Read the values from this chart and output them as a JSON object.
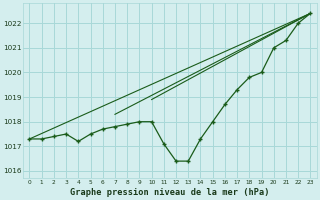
{
  "xlabel": "Graphe pression niveau de la mer (hPa)",
  "background_color": "#d4eeee",
  "grid_color": "#a8d8d8",
  "line_color": "#1a5c1a",
  "xlim": [
    -0.5,
    23.5
  ],
  "ylim": [
    1015.7,
    1022.8
  ],
  "yticks": [
    1016,
    1017,
    1018,
    1019,
    1020,
    1021,
    1022
  ],
  "xticks": [
    0,
    1,
    2,
    3,
    4,
    5,
    6,
    7,
    8,
    9,
    10,
    11,
    12,
    13,
    14,
    15,
    16,
    17,
    18,
    19,
    20,
    21,
    22,
    23
  ],
  "hours": [
    0,
    1,
    2,
    3,
    4,
    5,
    6,
    7,
    8,
    9,
    10,
    11,
    12,
    13,
    14,
    15,
    16,
    17,
    18,
    19,
    20,
    21,
    22,
    23
  ],
  "line_main": [
    1017.3,
    1017.3,
    1017.4,
    1017.5,
    1017.2,
    1017.5,
    1017.7,
    1017.8,
    1017.9,
    1018.0,
    1018.0,
    1017.1,
    1016.4,
    1016.4,
    1017.3,
    1018.0,
    1018.7,
    1019.3,
    1019.8,
    1020.0,
    1021.0,
    1021.3,
    1022.0,
    1022.4
  ],
  "trend1_x": [
    0,
    23
  ],
  "trend1_y": [
    1017.3,
    1022.4
  ],
  "trend2_x": [
    7,
    23
  ],
  "trend2_y": [
    1018.3,
    1022.4
  ],
  "trend3_x": [
    10,
    23
  ],
  "trend3_y": [
    1018.9,
    1022.4
  ]
}
